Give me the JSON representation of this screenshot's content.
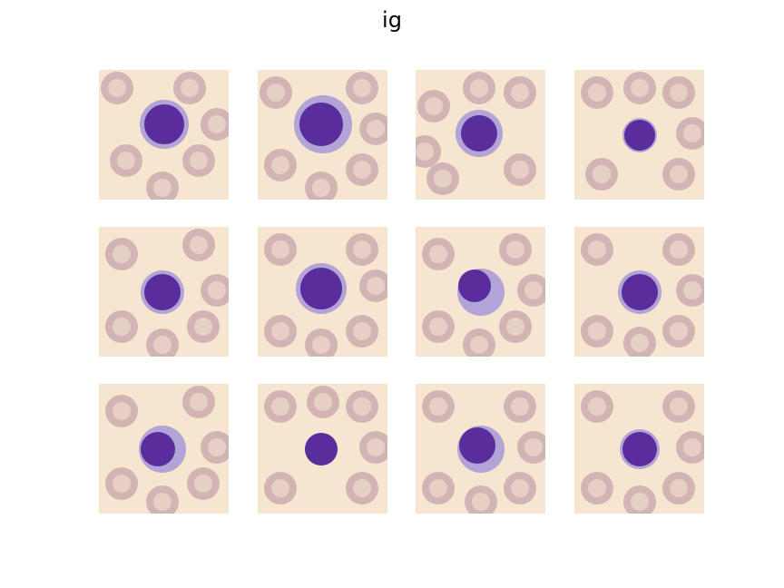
{
  "figure": {
    "title": "ig"
  },
  "panels": [
    {
      "id": 1,
      "subject": "blood-smear-cell",
      "row": 1,
      "col": 1
    },
    {
      "id": 2,
      "subject": "blood-smear-cell",
      "row": 1,
      "col": 2
    },
    {
      "id": 3,
      "subject": "blood-smear-cell",
      "row": 1,
      "col": 3
    },
    {
      "id": 4,
      "subject": "blood-smear-cell",
      "row": 1,
      "col": 4
    },
    {
      "id": 5,
      "subject": "blood-smear-cell",
      "row": 2,
      "col": 1
    },
    {
      "id": 6,
      "subject": "blood-smear-cell",
      "row": 2,
      "col": 2
    },
    {
      "id": 7,
      "subject": "blood-smear-cell",
      "row": 2,
      "col": 3
    },
    {
      "id": 8,
      "subject": "blood-smear-cell",
      "row": 2,
      "col": 4
    },
    {
      "id": 9,
      "subject": "blood-smear-cell",
      "row": 3,
      "col": 1
    },
    {
      "id": 10,
      "subject": "blood-smear-cell",
      "row": 3,
      "col": 2
    },
    {
      "id": 11,
      "subject": "blood-smear-cell",
      "row": 3,
      "col": 3
    },
    {
      "id": 12,
      "subject": "blood-smear-cell",
      "row": 3,
      "col": 4
    }
  ],
  "colors": {
    "background": "#f7e6cf",
    "rbc": "#d2b4b4",
    "rbc_center": "#e6cfc4",
    "nucleus": "#5a2d9c",
    "cytoplasm": "#b2a4d6"
  }
}
